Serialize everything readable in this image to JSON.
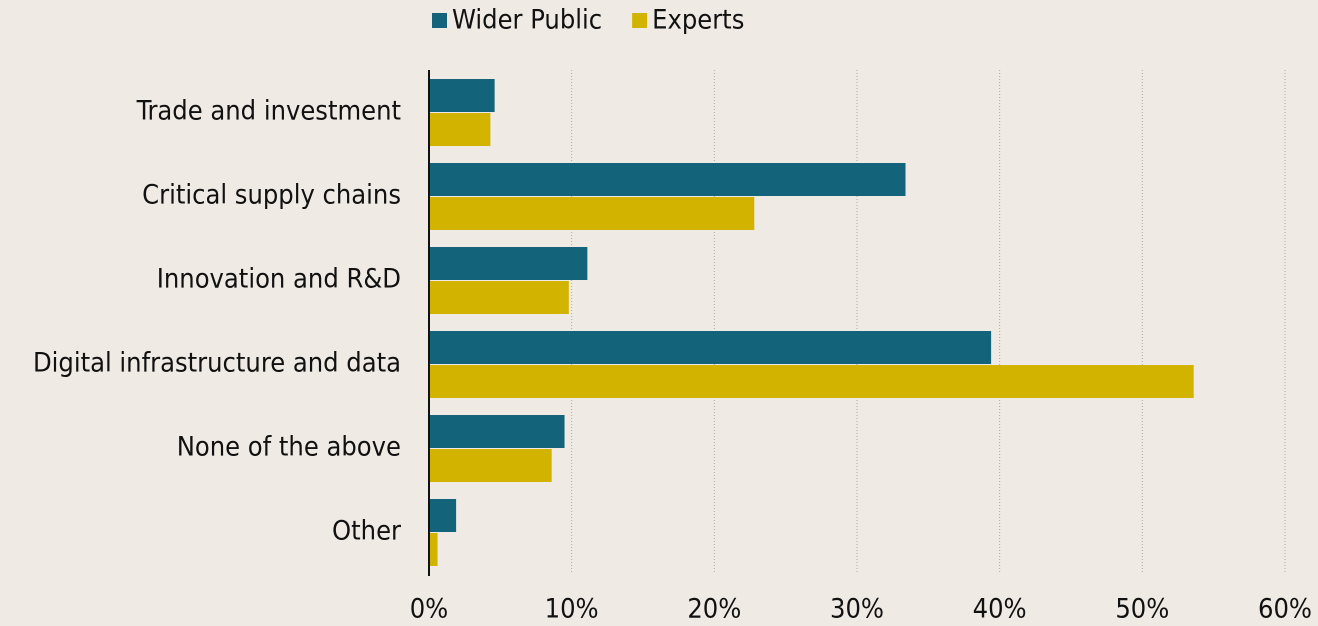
{
  "chart_data": {
    "type": "bar",
    "orientation": "horizontal",
    "categories": [
      "Trade and investment",
      "Critical supply chains",
      "Innovation and R&D",
      "Digital infrastructure and data",
      "None of the above",
      "Other"
    ],
    "series": [
      {
        "name": "Wider Public",
        "color": "#13647a",
        "values": [
          4.6,
          33.4,
          11.1,
          39.4,
          9.5,
          1.9
        ]
      },
      {
        "name": "Experts",
        "color": "#d2b400",
        "values": [
          4.3,
          22.8,
          9.8,
          53.6,
          8.6,
          0.6
        ]
      }
    ],
    "xlim": [
      0,
      60
    ],
    "xticks": [
      {
        "value": 0,
        "label": "0%"
      },
      {
        "value": 10,
        "label": "10%"
      },
      {
        "value": 20,
        "label": "20%"
      },
      {
        "value": 30,
        "label": "30%"
      },
      {
        "value": 40,
        "label": "40%"
      },
      {
        "value": 50,
        "label": "50%"
      },
      {
        "value": 60,
        "label": "60%"
      }
    ],
    "grid": true,
    "legend": "top"
  }
}
